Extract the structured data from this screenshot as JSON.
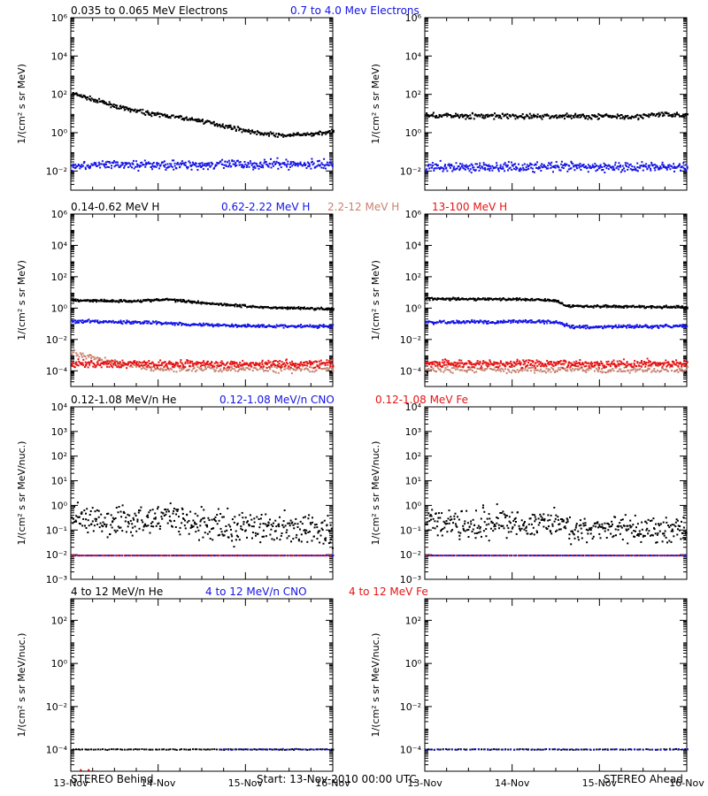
{
  "colors": {
    "black": "#000000",
    "blue": "#1414e6",
    "tan": "#c8826e",
    "red": "#e61414"
  },
  "footer": {
    "left": "STEREO Behind",
    "center": "Start: 13-Nov-2010 00:00 UTC",
    "right": "STEREO Ahead"
  },
  "x_axis": {
    "range_days": [
      0,
      3
    ],
    "tick_labels": [
      "13-Nov",
      "14-Nov",
      "15-Nov",
      "16-Nov"
    ]
  },
  "chart_data": [
    {
      "type": "scatter",
      "scale": "log",
      "ylabel": "1/(cm² s sr MeV)",
      "ylim_exp": [
        -3,
        6
      ],
      "y_tick_exps": [
        -2,
        0,
        2,
        4,
        6
      ],
      "y_tick_labels": [
        "10⁻²",
        "10⁰",
        "10²",
        "10⁴",
        "10⁶"
      ],
      "headers": [
        {
          "text": "0.035 to 0.065 MeV Electrons",
          "color": "black"
        },
        {
          "text": "0.7 to 4.0 Mev Electrons",
          "color": "blue"
        }
      ],
      "panels": [
        {
          "id": "behind",
          "series": [
            {
              "color": "black",
              "points": [
                [
                  0.0,
                  2.1
                ],
                [
                  0.3,
                  1.7
                ],
                [
                  0.6,
                  1.3
                ],
                [
                  0.9,
                  1.05
                ],
                [
                  1.2,
                  0.85
                ],
                [
                  1.5,
                  0.65
                ],
                [
                  1.8,
                  0.35
                ],
                [
                  2.1,
                  0.05
                ],
                [
                  2.4,
                  -0.1
                ],
                [
                  2.7,
                  -0.05
                ],
                [
                  3.0,
                  0.1
                ]
              ],
              "noise": 0.05,
              "count": 350
            },
            {
              "color": "blue",
              "points": [
                [
                  0.0,
                  -1.65
                ],
                [
                  3.0,
                  -1.6
                ]
              ],
              "noise": 0.12,
              "count": 400
            }
          ]
        },
        {
          "id": "ahead",
          "series": [
            {
              "color": "black",
              "points": [
                [
                  0.0,
                  0.95
                ],
                [
                  0.9,
                  0.9
                ],
                [
                  1.8,
                  0.9
                ],
                [
                  2.5,
                  0.9
                ],
                [
                  2.7,
                  1.0
                ],
                [
                  3.0,
                  0.95
                ]
              ],
              "noise": 0.07,
              "count": 350
            },
            {
              "color": "blue",
              "points": [
                [
                  0.0,
                  -1.75
                ],
                [
                  3.0,
                  -1.75
                ]
              ],
              "noise": 0.12,
              "count": 400
            }
          ]
        }
      ]
    },
    {
      "type": "scatter",
      "scale": "log",
      "ylabel": "1/(cm² s sr MeV)",
      "ylim_exp": [
        -5,
        6
      ],
      "y_tick_exps": [
        -4,
        -2,
        0,
        2,
        4,
        6
      ],
      "y_tick_labels": [
        "10⁻⁴",
        "10⁻²",
        "10⁰",
        "10²",
        "10⁴",
        "10⁶"
      ],
      "headers": [
        {
          "text": "0.14-0.62 MeV H",
          "color": "black"
        },
        {
          "text": "0.62-2.22 MeV H",
          "color": "blue"
        },
        {
          "text": "2.2-12 MeV H",
          "color": "tan"
        },
        {
          "text": "13-100 MeV H",
          "color": "red"
        }
      ],
      "panels": [
        {
          "id": "behind",
          "series": [
            {
              "color": "black",
              "points": [
                [
                  0.0,
                  0.55
                ],
                [
                  0.7,
                  0.5
                ],
                [
                  1.1,
                  0.6
                ],
                [
                  1.6,
                  0.35
                ],
                [
                  2.2,
                  0.1
                ],
                [
                  3.0,
                  0.0
                ]
              ],
              "noise": 0.04,
              "count": 350
            },
            {
              "color": "blue",
              "points": [
                [
                  0.0,
                  -0.8
                ],
                [
                  0.8,
                  -0.85
                ],
                [
                  1.5,
                  -1.0
                ],
                [
                  2.2,
                  -1.1
                ],
                [
                  3.0,
                  -1.1
                ]
              ],
              "noise": 0.05,
              "count": 350
            },
            {
              "color": "tan",
              "points": [
                [
                  0.0,
                  -2.85
                ],
                [
                  0.25,
                  -3.1
                ],
                [
                  0.5,
                  -3.45
                ],
                [
                  0.9,
                  -3.8
                ],
                [
                  3.0,
                  -3.85
                ]
              ],
              "noise": 0.1,
              "count": 250
            },
            {
              "color": "red",
              "points": [
                [
                  0.0,
                  -3.5
                ],
                [
                  3.0,
                  -3.5
                ]
              ],
              "noise": 0.12,
              "count": 450
            }
          ]
        },
        {
          "id": "ahead",
          "series": [
            {
              "color": "black",
              "points": [
                [
                  0.0,
                  0.65
                ],
                [
                  1.3,
                  0.6
                ],
                [
                  1.5,
                  0.55
                ],
                [
                  1.6,
                  0.2
                ],
                [
                  2.2,
                  0.15
                ],
                [
                  3.0,
                  0.1
                ]
              ],
              "noise": 0.04,
              "count": 350
            },
            {
              "color": "blue",
              "points": [
                [
                  0.0,
                  -0.85
                ],
                [
                  1.4,
                  -0.8
                ],
                [
                  1.55,
                  -0.9
                ],
                [
                  1.7,
                  -1.15
                ],
                [
                  3.0,
                  -1.1
                ]
              ],
              "noise": 0.05,
              "count": 350
            },
            {
              "color": "tan",
              "points": [
                [
                  0.0,
                  -3.85
                ],
                [
                  3.0,
                  -3.9
                ]
              ],
              "noise": 0.1,
              "count": 250
            },
            {
              "color": "red",
              "points": [
                [
                  0.0,
                  -3.5
                ],
                [
                  3.0,
                  -3.5
                ]
              ],
              "noise": 0.12,
              "count": 450
            }
          ]
        }
      ]
    },
    {
      "type": "scatter",
      "scale": "log",
      "ylabel": "1/(cm² s sr MeV/nuc.)",
      "ylim_exp": [
        -3,
        4
      ],
      "y_tick_exps": [
        -3,
        -2,
        -1,
        0,
        1,
        2,
        3,
        4
      ],
      "y_tick_labels": [
        "10⁻³",
        "10⁻²",
        "10⁻¹",
        "10⁰",
        "10¹",
        "10²",
        "10³",
        "10⁴"
      ],
      "headers": [
        {
          "text": "0.12-1.08 MeV/n He",
          "color": "black"
        },
        {
          "text": "0.12-1.08 MeV/n CNO",
          "color": "blue"
        },
        {
          "text": "0.12-1.08 MeV Fe",
          "color": "red"
        }
      ],
      "panels": [
        {
          "id": "behind",
          "series": [
            {
              "color": "black",
              "points": [
                [
                  0.0,
                  -0.5
                ],
                [
                  0.7,
                  -0.6
                ],
                [
                  1.0,
                  -0.5
                ],
                [
                  1.1,
                  -0.4
                ],
                [
                  1.3,
                  -0.55
                ],
                [
                  1.5,
                  -0.8
                ],
                [
                  3.0,
                  -1.0
                ]
              ],
              "noise": 0.3,
              "count": 420
            },
            {
              "color": "blue",
              "points": [
                [
                  0.0,
                  -2.0
                ],
                [
                  3.0,
                  -2.0
                ]
              ],
              "noise": 0.0,
              "count": 180
            },
            {
              "color": "red",
              "points": [
                [
                  0.0,
                  -2.0
                ],
                [
                  3.0,
                  -2.0
                ]
              ],
              "noise": 0.0,
              "count": 90
            }
          ]
        },
        {
          "id": "ahead",
          "series": [
            {
              "color": "black",
              "points": [
                [
                  0.0,
                  -0.6
                ],
                [
                  1.2,
                  -0.7
                ],
                [
                  1.5,
                  -0.65
                ],
                [
                  1.7,
                  -0.9
                ],
                [
                  3.0,
                  -1.0
                ]
              ],
              "noise": 0.28,
              "count": 420
            },
            {
              "color": "blue",
              "points": [
                [
                  0.0,
                  -2.0
                ],
                [
                  3.0,
                  -2.0
                ]
              ],
              "noise": 0.0,
              "count": 180
            },
            {
              "color": "red",
              "points": [
                [
                  0.0,
                  -2.0
                ],
                [
                  3.0,
                  -2.0
                ]
              ],
              "noise": 0.0,
              "count": 60
            }
          ]
        }
      ]
    },
    {
      "type": "scatter",
      "scale": "log",
      "ylabel": "1/(cm² s sr MeV/nuc.)",
      "ylim_exp": [
        -5,
        3
      ],
      "y_tick_exps": [
        -4,
        -2,
        0,
        2
      ],
      "y_tick_labels": [
        "10⁻⁴",
        "10⁻²",
        "10⁰",
        "10²"
      ],
      "headers": [
        {
          "text": "4 to 12 MeV/n He",
          "color": "black"
        },
        {
          "text": "4 to 12 MeV/n CNO",
          "color": "blue"
        },
        {
          "text": "4 to 12 MeV Fe",
          "color": "red"
        }
      ],
      "panels": [
        {
          "id": "behind",
          "series": [
            {
              "color": "black",
              "points": [
                [
                  0.0,
                  -3.95
                ],
                [
                  3.0,
                  -3.95
                ]
              ],
              "noise": 0.01,
              "count": 120
            },
            {
              "color": "blue",
              "points": [
                [
                  1.7,
                  -3.95
                ],
                [
                  3.0,
                  -3.95
                ]
              ],
              "noise": 0.01,
              "count": 30
            },
            {
              "color": "red",
              "points": [
                [
                  0.1,
                  -4.9
                ],
                [
                  0.2,
                  -4.9
                ]
              ],
              "noise": 0.0,
              "count": 2
            }
          ]
        },
        {
          "id": "ahead",
          "series": [
            {
              "color": "black",
              "points": [
                [
                  0.0,
                  -3.95
                ],
                [
                  3.0,
                  -3.95
                ]
              ],
              "noise": 0.01,
              "count": 90
            },
            {
              "color": "blue",
              "points": [
                [
                  0.0,
                  -3.95
                ],
                [
                  3.0,
                  -3.95
                ]
              ],
              "noise": 0.01,
              "count": 60
            }
          ]
        }
      ]
    }
  ]
}
